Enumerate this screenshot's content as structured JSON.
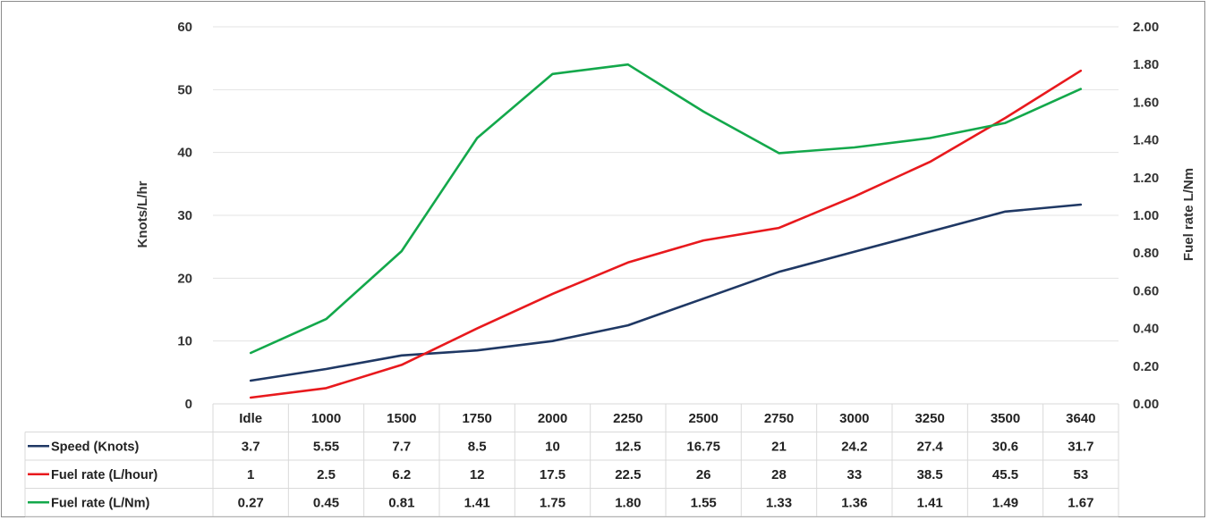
{
  "chart_data": {
    "type": "line",
    "title": "",
    "categories": [
      "Idle",
      "1000",
      "1500",
      "1750",
      "2000",
      "2250",
      "2500",
      "2750",
      "3000",
      "3250",
      "3500",
      "3640"
    ],
    "ylabel": "Knots/L/hr",
    "y2label": "Fuel rate L/Nm",
    "ylim": [
      0,
      60
    ],
    "y2lim": [
      0,
      2
    ],
    "yticks": [
      "0",
      "10",
      "20",
      "30",
      "40",
      "50",
      "60"
    ],
    "y2ticks": [
      "0.00",
      "0.20",
      "0.40",
      "0.60",
      "0.80",
      "1.00",
      "1.20",
      "1.40",
      "1.60",
      "1.80",
      "2.00"
    ],
    "grid": true,
    "legend": "data-table",
    "series": [
      {
        "name": "Speed (Knots)",
        "axis": "left",
        "color": "#1f3864",
        "values": [
          3.7,
          5.55,
          7.7,
          8.5,
          10,
          12.5,
          16.75,
          21,
          24.2,
          27.4,
          30.6,
          31.7
        ],
        "labels": [
          "3.7",
          "5.55",
          "7.7",
          "8.5",
          "10",
          "12.5",
          "16.75",
          "21",
          "24.2",
          "27.4",
          "30.6",
          "31.7"
        ]
      },
      {
        "name": "Fuel rate (L/hour)",
        "axis": "left",
        "color": "#e8191d",
        "values": [
          1,
          2.5,
          6.2,
          12,
          17.5,
          22.5,
          26,
          28,
          33,
          38.5,
          45.5,
          53
        ],
        "labels": [
          "1",
          "2.5",
          "6.2",
          "12",
          "17.5",
          "22.5",
          "26",
          "28",
          "33",
          "38.5",
          "45.5",
          "53"
        ]
      },
      {
        "name": "Fuel rate (L/Nm)",
        "axis": "right",
        "color": "#13a84b",
        "values": [
          0.27,
          0.45,
          0.81,
          1.41,
          1.75,
          1.8,
          1.55,
          1.33,
          1.36,
          1.41,
          1.49,
          1.67
        ],
        "labels": [
          "0.27",
          "0.45",
          "0.81",
          "1.41",
          "1.75",
          "1.80",
          "1.55",
          "1.33",
          "1.36",
          "1.41",
          "1.49",
          "1.67"
        ]
      }
    ]
  }
}
